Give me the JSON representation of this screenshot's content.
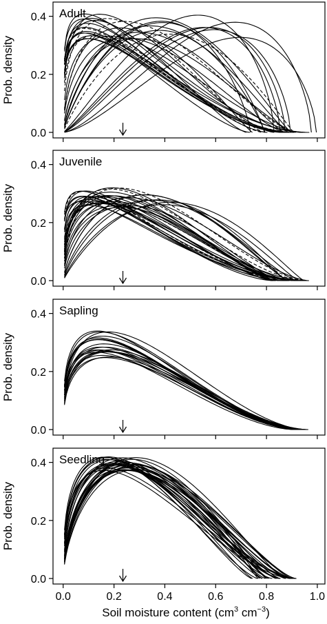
{
  "chart_data": [
    {
      "type": "line",
      "panel_label": "Adult",
      "ylabel": "Prob. density",
      "ylim": [
        0,
        0.43
      ],
      "yticks": [
        "0.0",
        "0.2",
        "0.4"
      ],
      "xlim": [
        -0.04,
        1.03
      ],
      "arrow_x": 0.235,
      "curve_count": 34,
      "dashed_count": 5,
      "peak_range": [
        0.08,
        0.7
      ],
      "height_range": [
        0.32,
        0.41
      ],
      "tail_range": [
        0.72,
        0.97
      ]
    },
    {
      "type": "line",
      "panel_label": "Juvenile",
      "ylabel": "Prob. density",
      "ylim": [
        0,
        0.43
      ],
      "yticks": [
        "0.0",
        "0.2",
        "0.4"
      ],
      "xlim": [
        -0.04,
        1.03
      ],
      "arrow_x": 0.235,
      "curve_count": 34,
      "dashed_count": 5,
      "peak_range": [
        0.07,
        0.45
      ],
      "height_range": [
        0.25,
        0.32
      ],
      "tail_range": [
        0.82,
        0.98
      ]
    },
    {
      "type": "line",
      "panel_label": "Sapling",
      "ylabel": "Prob. density",
      "ylim": [
        0,
        0.43
      ],
      "yticks": [
        "0.0",
        "0.2",
        "0.4"
      ],
      "xlim": [
        -0.04,
        1.03
      ],
      "arrow_x": 0.235,
      "curve_count": 22,
      "dashed_count": 0,
      "peak_range": [
        0.13,
        0.2
      ],
      "height_range": [
        0.24,
        0.34
      ],
      "tail_range": [
        0.9,
        0.97
      ]
    },
    {
      "type": "line",
      "panel_label": "Seedling",
      "ylabel": "Prob. density",
      "ylim": [
        0,
        0.43
      ],
      "yticks": [
        "0.0",
        "0.2",
        "0.4"
      ],
      "xlim": [
        -0.04,
        1.03
      ],
      "arrow_x": 0.235,
      "curve_count": 30,
      "dashed_count": 0,
      "peak_range": [
        0.16,
        0.29
      ],
      "height_range": [
        0.37,
        0.42
      ],
      "tail_range": [
        0.74,
        0.92
      ]
    }
  ],
  "x_axis": {
    "ticks": [
      "0.0",
      "0.2",
      "0.4",
      "0.6",
      "0.8",
      "1.0"
    ],
    "label_main": "Soil moisture content (cm",
    "label_sup1": "3",
    "label_mid": " cm",
    "label_sup2": "−3",
    "label_end": ")"
  },
  "colors": {
    "line": "#000000",
    "background": "#ffffff"
  }
}
